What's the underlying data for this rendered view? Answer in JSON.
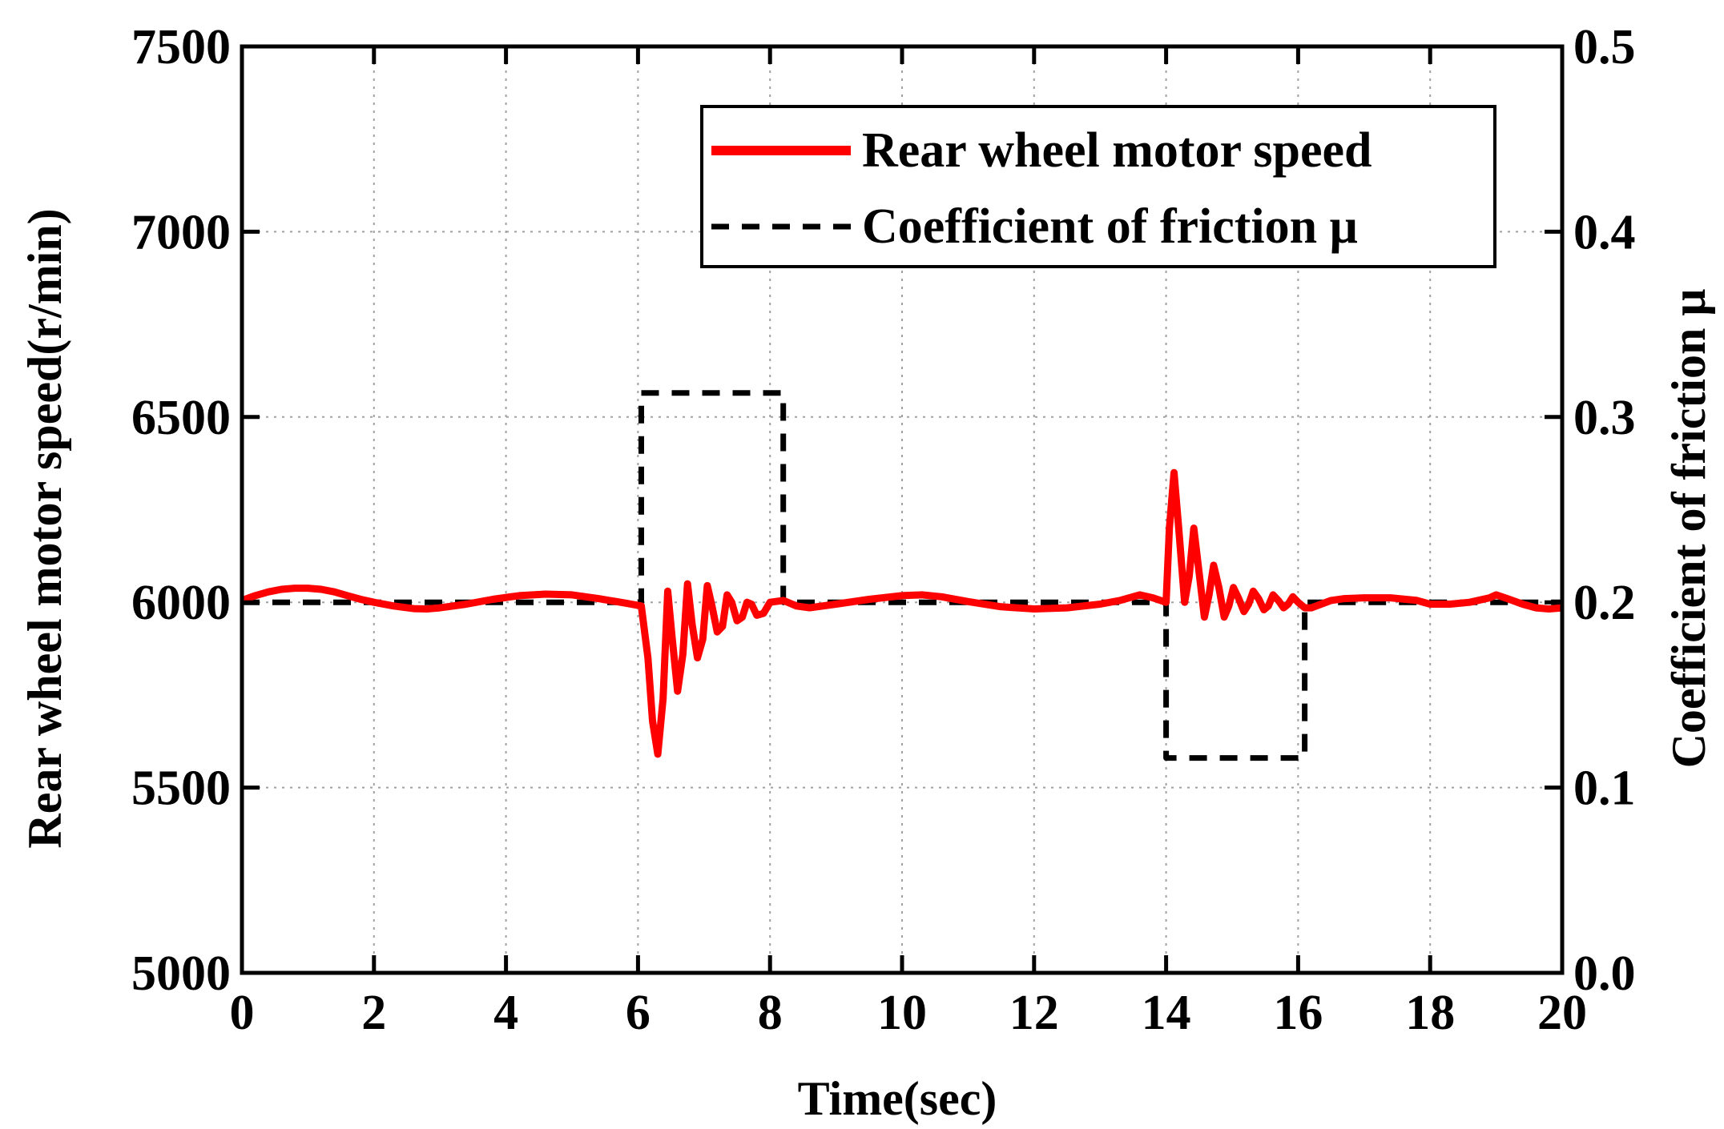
{
  "chart_data": {
    "type": "line",
    "title": "",
    "xlabel": "Time(sec)",
    "ylabel_left": "Rear wheel motor speed(r/min)",
    "ylabel_right": "Coefficient of friction μ",
    "xlim": [
      0,
      20
    ],
    "ylim_left": [
      5000,
      7500
    ],
    "ylim_right": [
      0.0,
      0.5
    ],
    "xticks": [
      "0",
      "2",
      "4",
      "6",
      "8",
      "10",
      "12",
      "14",
      "16",
      "18",
      "20"
    ],
    "yticks_left": [
      "5000",
      "5500",
      "6000",
      "6500",
      "7000",
      "7500"
    ],
    "yticks_right": [
      "0.0",
      "0.1",
      "0.2",
      "0.3",
      "0.4",
      "0.5"
    ],
    "grid": true,
    "legend_position": "top-right",
    "series": [
      {
        "name": "Rear wheel motor speed",
        "axis": "left",
        "color": "#ff0000",
        "style": "solid",
        "x": [
          0,
          0.2,
          0.4,
          0.6,
          0.8,
          1.0,
          1.2,
          1.4,
          1.6,
          1.8,
          2.0,
          2.3,
          2.6,
          2.8,
          3.0,
          3.4,
          3.8,
          4.2,
          4.6,
          5.0,
          5.4,
          5.8,
          6.05,
          6.15,
          6.22,
          6.3,
          6.38,
          6.45,
          6.52,
          6.6,
          6.68,
          6.75,
          6.82,
          6.9,
          6.98,
          7.05,
          7.12,
          7.2,
          7.28,
          7.35,
          7.42,
          7.5,
          7.58,
          7.65,
          7.72,
          7.8,
          7.9,
          8.0,
          8.2,
          8.4,
          8.6,
          9.0,
          9.5,
          10.0,
          10.3,
          10.6,
          11.0,
          11.5,
          12.0,
          12.5,
          13.0,
          13.3,
          13.6,
          13.8,
          14.0,
          14.05,
          14.12,
          14.2,
          14.28,
          14.35,
          14.42,
          14.5,
          14.58,
          14.65,
          14.72,
          14.8,
          14.88,
          14.95,
          15.02,
          15.1,
          15.18,
          15.25,
          15.32,
          15.4,
          15.48,
          15.55,
          15.62,
          15.7,
          15.78,
          15.85,
          15.92,
          16.0,
          16.1,
          16.2,
          16.35,
          16.5,
          16.7,
          17.0,
          17.4,
          17.8,
          18.0,
          18.3,
          18.6,
          18.9,
          19.0,
          19.2,
          19.4,
          19.6,
          19.8,
          20.0
        ],
        "values": [
          6005,
          6018,
          6028,
          6035,
          6038,
          6038,
          6035,
          6028,
          6018,
          6008,
          6000,
          5990,
          5983,
          5982,
          5985,
          5995,
          6008,
          6018,
          6022,
          6020,
          6010,
          5998,
          5990,
          5850,
          5680,
          5590,
          5740,
          6030,
          5900,
          5760,
          5860,
          6050,
          5940,
          5850,
          5900,
          6045,
          5990,
          5920,
          5935,
          6020,
          6000,
          5950,
          5960,
          6000,
          5995,
          5965,
          5970,
          6000,
          6005,
          5990,
          5985,
          5995,
          6008,
          6018,
          6020,
          6015,
          6002,
          5988,
          5982,
          5985,
          5995,
          6005,
          6020,
          6012,
          6000,
          6200,
          6350,
          6180,
          6000,
          6070,
          6200,
          6080,
          5960,
          6020,
          6100,
          6040,
          5960,
          5990,
          6040,
          6010,
          5975,
          5995,
          6030,
          6010,
          5980,
          5990,
          6020,
          6005,
          5985,
          5995,
          6015,
          6000,
          5985,
          5985,
          5995,
          6005,
          6010,
          6012,
          6012,
          6005,
          5995,
          5995,
          6000,
          6012,
          6020,
          6008,
          5995,
          5985,
          5982,
          5985
        ]
      },
      {
        "name": "Coefficient of friction μ",
        "axis": "right",
        "color": "#000000",
        "style": "dashed",
        "x": [
          0,
          6.05,
          6.05,
          8.2,
          8.2,
          14.0,
          14.0,
          16.1,
          16.1,
          20
        ],
        "values": [
          0.2,
          0.2,
          0.313,
          0.313,
          0.2,
          0.2,
          0.116,
          0.116,
          0.2,
          0.2
        ]
      }
    ]
  }
}
